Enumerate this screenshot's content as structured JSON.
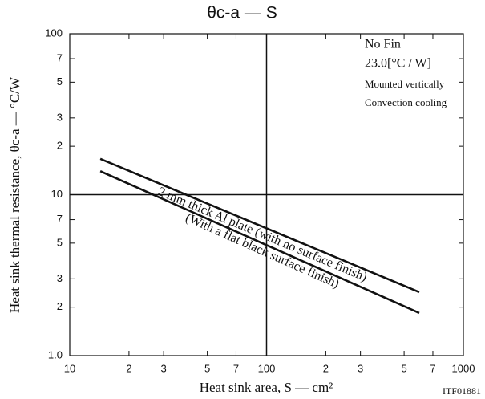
{
  "chart_data": {
    "type": "line",
    "title": "θc-a — S",
    "xlabel": "Heat sink area, S — cm²",
    "ylabel": "Heat sink thermal resistance, θc-a — °C/W",
    "footer": "ITF01881",
    "annotations": [
      "No Fin",
      "23.0[°C / W]",
      "Mounted vertically",
      "Convection cooling"
    ],
    "x": [
      14.3,
      597
    ],
    "series": [
      {
        "name": "2 mm thick Al plate (with no surface finish)",
        "color": "#111111",
        "values": [
          16.7,
          2.48
        ]
      },
      {
        "name": "(With a flat black surface finish)",
        "color": "#111111",
        "values": [
          14.0,
          1.84
        ]
      }
    ],
    "xlog": true,
    "ylog": true,
    "xlim": [
      10,
      1000
    ],
    "ylim": [
      1,
      100
    ],
    "xticks": [
      10,
      {
        "value": 20,
        "label": "2"
      },
      {
        "value": 30,
        "label": "3"
      },
      {
        "value": 50,
        "label": "5"
      },
      {
        "value": 70,
        "label": "7"
      },
      100,
      {
        "value": 200,
        "label": "2"
      },
      {
        "value": 300,
        "label": "3"
      },
      {
        "value": 500,
        "label": "5"
      },
      {
        "value": 700,
        "label": "7"
      },
      1000
    ],
    "yticks": [
      {
        "value": 1,
        "label": "1.0"
      },
      {
        "value": 2,
        "label": "2"
      },
      {
        "value": 3,
        "label": "3"
      },
      {
        "value": 5,
        "label": "5"
      },
      {
        "value": 7,
        "label": "7"
      },
      10,
      {
        "value": 20,
        "label": "2"
      },
      {
        "value": 30,
        "label": "3"
      },
      {
        "value": 50,
        "label": "5"
      },
      {
        "value": 70,
        "label": "7"
      },
      100
    ],
    "xgrid": [
      100
    ],
    "ygrid": [
      10
    ]
  }
}
